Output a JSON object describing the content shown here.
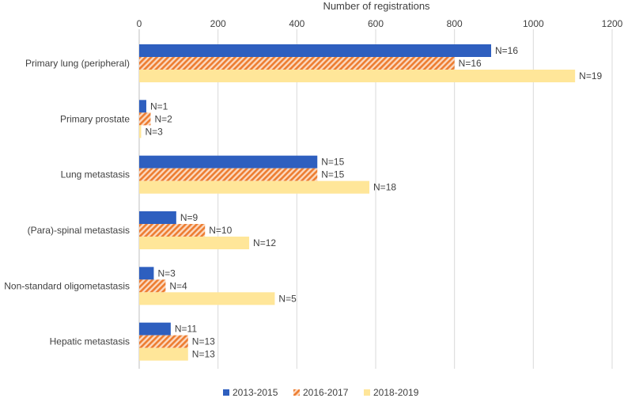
{
  "chart_data": {
    "type": "bar",
    "orientation": "horizontal",
    "title": "",
    "xlabel": "Number of registrations",
    "ylabel": "",
    "xlim": [
      0,
      1200
    ],
    "xticks": [
      0,
      200,
      400,
      600,
      800,
      1000,
      1200
    ],
    "xtick_labels": [
      "0",
      "200",
      "400",
      "600",
      "800",
      "1000",
      "1200"
    ],
    "grid": true,
    "legend_position": "bottom",
    "categories": [
      "Primary lung (peripheral)",
      "Primary prostate",
      "Lung metastasis",
      "(Para)-spinal metastasis",
      "Non-standard oligometastasis",
      "Hepatic metastasis"
    ],
    "series": [
      {
        "name": "2013-2015",
        "color": "#2E5FBF",
        "pattern": "solid",
        "values": [
          893,
          18,
          452,
          94,
          37,
          80
        ],
        "labels": [
          "N=16",
          "N=1",
          "N=15",
          "N=9",
          "N=3",
          "N=11"
        ]
      },
      {
        "name": "2016-2017",
        "color": "#ED7D31",
        "pattern": "hatch",
        "values": [
          800,
          29,
          452,
          167,
          67,
          124
        ],
        "labels": [
          "N=16",
          "N=2",
          "N=15",
          "N=10",
          "N=4",
          "N=13"
        ]
      },
      {
        "name": "2018-2019",
        "color": "#FFE699",
        "pattern": "solid",
        "values": [
          1106,
          5,
          584,
          279,
          344,
          124
        ],
        "labels": [
          "N=19",
          "N=3",
          "N=18",
          "N=12",
          "N=5",
          "N=13"
        ]
      }
    ]
  }
}
